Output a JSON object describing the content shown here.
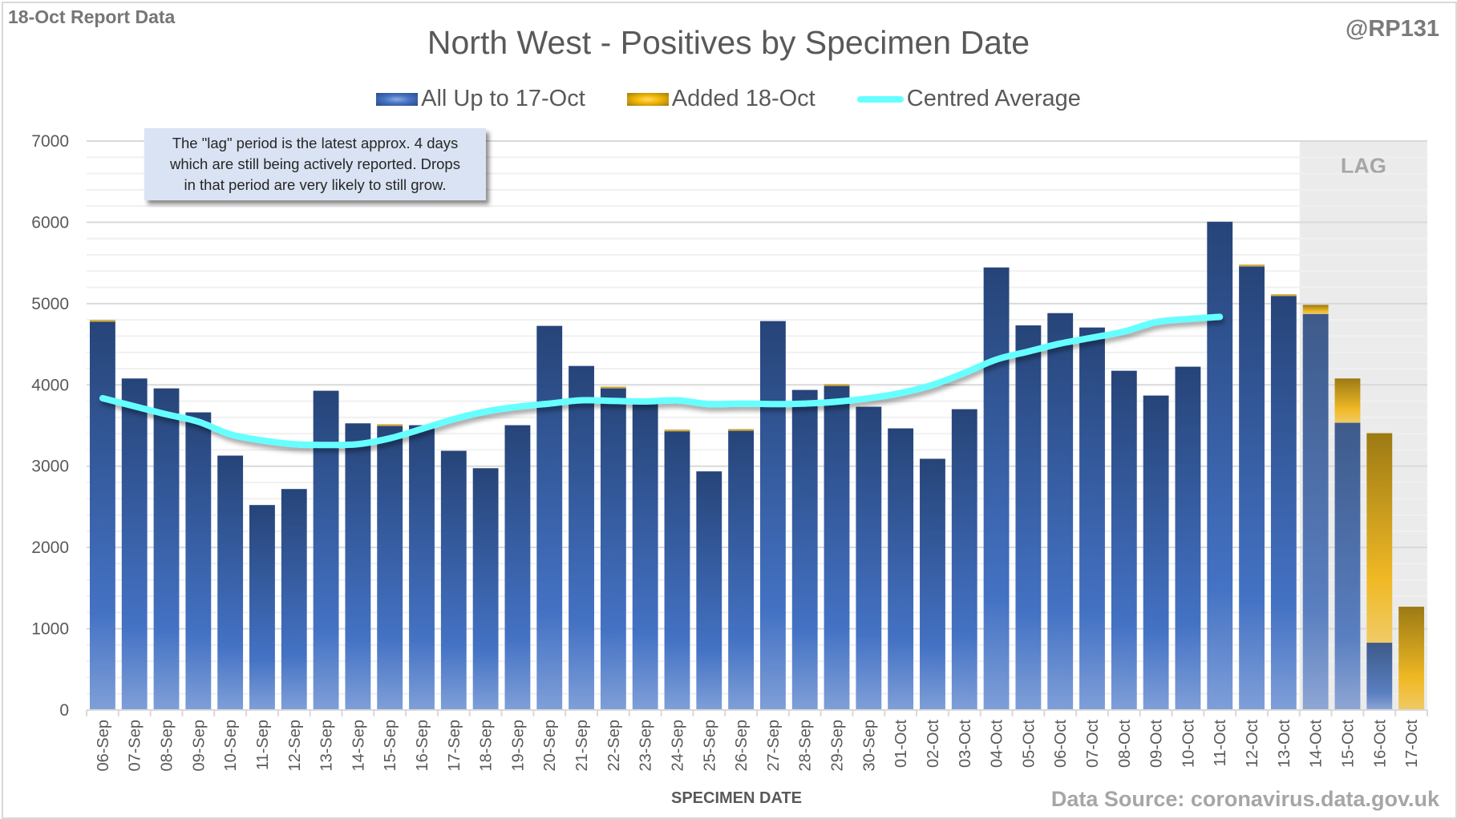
{
  "header": {
    "report_label": "18-Oct Report Data",
    "handle": "@RP131",
    "title": "North West - Positives by Specimen Date"
  },
  "legend": {
    "items": [
      {
        "label": "All Up to 17-Oct",
        "swatch": "blue-gradient-bar"
      },
      {
        "label": "Added 18-Oct",
        "swatch": "gold-gradient-bar"
      },
      {
        "label": "Centred Average",
        "swatch": "cyan-line"
      }
    ]
  },
  "note": {
    "lines": [
      "The \"lag\" period is the latest approx. 4 days",
      "which are still being actively reported.  Drops",
      "in that period are very likely to still grow."
    ]
  },
  "footer": {
    "xlabel": "SPECIMEN DATE",
    "source": "Data Source: coronavirus.data.gov.uk"
  },
  "colors": {
    "blue_top": "#264478",
    "blue_bottom": "#7f9fd8",
    "gold_top": "#9c7a14",
    "gold_mid": "#f0b925",
    "average_line": "#66ffff",
    "lag_shade": "#ebebeb",
    "grid": "#d9d9d9"
  },
  "chart_data": {
    "type": "bar",
    "stacked": true,
    "title": "North West - Positives by Specimen Date",
    "xlabel": "SPECIMEN DATE",
    "ylabel": "",
    "ylim": [
      0,
      7000
    ],
    "yticks": [
      0,
      1000,
      2000,
      3000,
      4000,
      5000,
      6000,
      7000
    ],
    "minor_grid_step": 200,
    "grid": true,
    "legend_position": "top-center",
    "lag_region": {
      "label": "LAG",
      "from": "14-Oct",
      "to": "17-Oct"
    },
    "categories": [
      "06-Sep",
      "07-Sep",
      "08-Sep",
      "09-Sep",
      "10-Sep",
      "11-Sep",
      "12-Sep",
      "13-Sep",
      "14-Sep",
      "15-Sep",
      "16-Sep",
      "17-Sep",
      "18-Sep",
      "19-Sep",
      "20-Sep",
      "21-Sep",
      "22-Sep",
      "23-Sep",
      "24-Sep",
      "25-Sep",
      "26-Sep",
      "27-Sep",
      "28-Sep",
      "29-Sep",
      "30-Sep",
      "01-Oct",
      "02-Oct",
      "03-Oct",
      "04-Oct",
      "05-Oct",
      "06-Oct",
      "07-Oct",
      "08-Oct",
      "09-Oct",
      "10-Oct",
      "11-Oct",
      "12-Oct",
      "13-Oct",
      "14-Oct",
      "15-Oct",
      "16-Oct",
      "17-Oct"
    ],
    "series": [
      {
        "name": "All Up to 17-Oct",
        "kind": "bar",
        "values": [
          4785,
          4079,
          3957,
          3662,
          3130,
          2522,
          2719,
          3928,
          3527,
          3500,
          3504,
          3189,
          2975,
          3504,
          4726,
          4233,
          3965,
          3773,
          3440,
          2936,
          3447,
          4785,
          3938,
          3995,
          3731,
          3465,
          3091,
          3701,
          5445,
          4732,
          4883,
          4706,
          4174,
          3869,
          4224,
          6007,
          5458,
          5100,
          4873,
          3534,
          828,
          0
        ]
      },
      {
        "name": "Added 18-Oct",
        "kind": "bar",
        "values": [
          12,
          0,
          0,
          0,
          0,
          0,
          0,
          0,
          0,
          14,
          0,
          0,
          0,
          0,
          0,
          0,
          12,
          0,
          8,
          0,
          8,
          0,
          0,
          12,
          0,
          0,
          0,
          0,
          0,
          0,
          0,
          0,
          0,
          0,
          0,
          0,
          20,
          13,
          112,
          545,
          2578,
          1271
        ]
      },
      {
        "name": "Centred Average",
        "kind": "line",
        "values": [
          3836,
          3737,
          3638,
          3547,
          3392,
          3317,
          3271,
          3261,
          3271,
          3343,
          3458,
          3579,
          3672,
          3731,
          3770,
          3810,
          3803,
          3796,
          3810,
          3764,
          3770,
          3764,
          3770,
          3793,
          3836,
          3900,
          4000,
          4148,
          4312,
          4411,
          4509,
          4581,
          4657,
          4772,
          4811,
          4837,
          null,
          null,
          null,
          null,
          null,
          null
        ]
      }
    ]
  }
}
